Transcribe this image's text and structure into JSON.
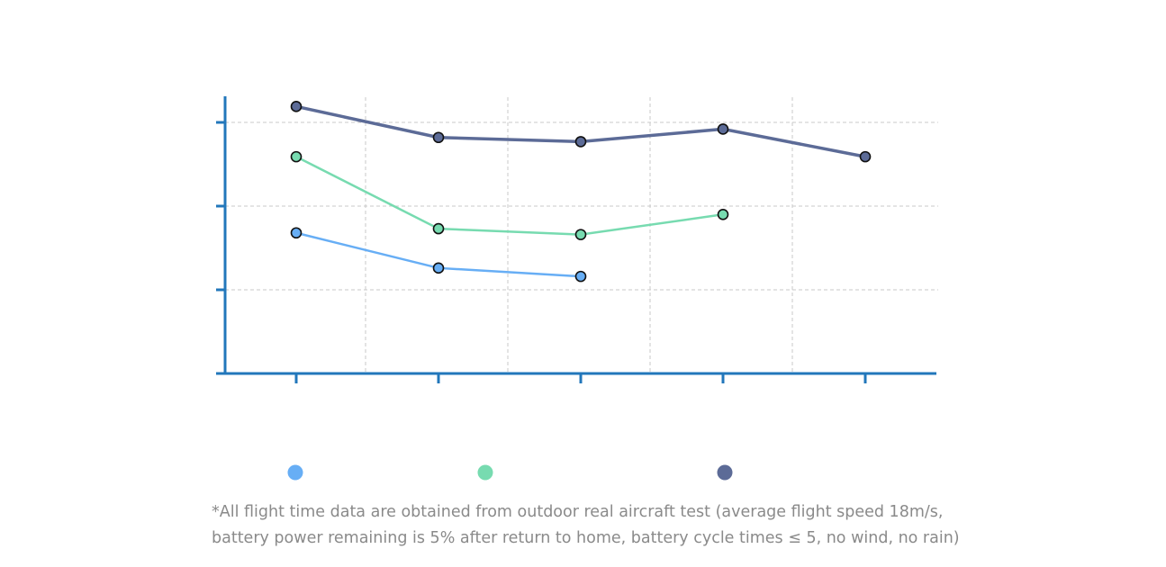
{
  "chart_data": {
    "type": "line",
    "title": "",
    "xlabel": "",
    "ylabel": "",
    "categories": [
      "",
      "",
      "",
      "",
      ""
    ],
    "ylim": [
      0,
      3.3
    ],
    "yticks": [
      1,
      2,
      3
    ],
    "grid": true,
    "legend_placement": "bottom",
    "series": [
      {
        "color": "#67aef5",
        "values": [
          1.68,
          1.26,
          1.16,
          null,
          null
        ]
      },
      {
        "color": "#77dbb0",
        "values": [
          2.59,
          1.73,
          1.66,
          1.9,
          null
        ]
      },
      {
        "color": "#5c6b97",
        "values": [
          3.19,
          2.82,
          2.77,
          2.92,
          2.59
        ]
      }
    ],
    "axis_color": "#2277bb"
  },
  "footnote": {
    "line1": "*All flight time data are obtained from outdoor real aircraft test (average flight speed 18m/s,",
    "line2": "battery power remaining is 5% after return to home, battery cycle times ≤ 5, no wind, no rain)"
  }
}
